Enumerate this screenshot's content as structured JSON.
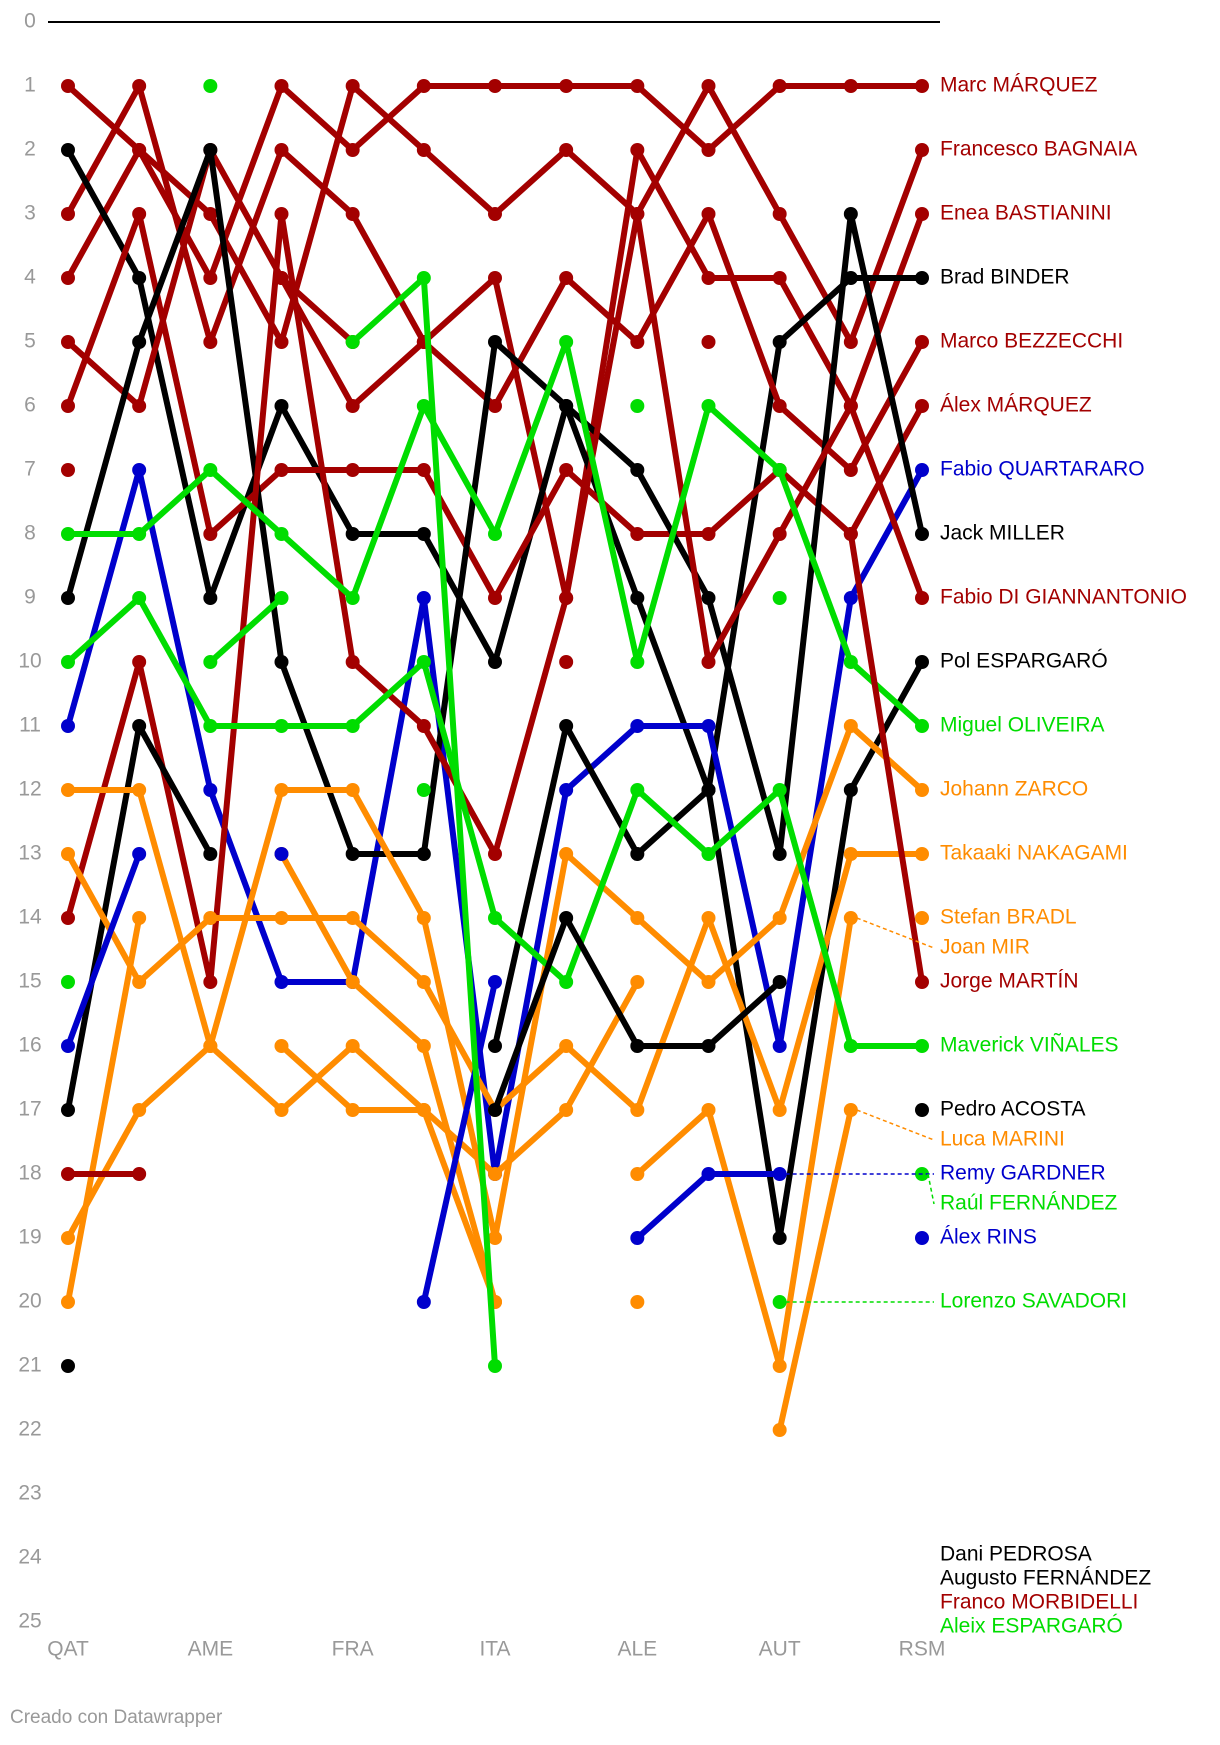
{
  "chart_data": {
    "type": "bump",
    "categories": [
      "QAT",
      null,
      "AME",
      null,
      "FRA",
      null,
      "ITA",
      null,
      "ALE",
      null,
      "AUT",
      null,
      "RSM"
    ],
    "ylim": [
      0,
      25
    ],
    "yticks": [
      0,
      1,
      2,
      3,
      4,
      5,
      6,
      7,
      8,
      9,
      10,
      11,
      12,
      13,
      14,
      15,
      16,
      17,
      18,
      19,
      20,
      21,
      22,
      23,
      24,
      25
    ],
    "credit": "Creado con Datawrapper",
    "series": [
      {
        "name": "Marc MÁRQUEZ",
        "color": "#a30000",
        "values": [
          4,
          2,
          4,
          1,
          2,
          1,
          1,
          1,
          1,
          2,
          1,
          1,
          1
        ]
      },
      {
        "name": "Francesco BAGNAIA",
        "color": "#a30000",
        "values": [
          1,
          2,
          3,
          5,
          1,
          2,
          3,
          2,
          3,
          1,
          3,
          5,
          2
        ]
      },
      {
        "name": "Enea BASTIANINI",
        "color": "#a30000",
        "values": [
          3,
          1,
          5,
          2,
          3,
          5,
          4,
          9,
          2,
          4,
          4,
          6,
          3
        ]
      },
      {
        "name": "Brad BINDER",
        "color": "#000000",
        "values": [
          2,
          4,
          9,
          6,
          8,
          8,
          10,
          6,
          9,
          12,
          5,
          4,
          4
        ]
      },
      {
        "name": "Marco BEZZECCHI",
        "color": "#a30000",
        "values": [
          5,
          6,
          2,
          4,
          6,
          5,
          6,
          4,
          5,
          3,
          6,
          7,
          5
        ]
      },
      {
        "name": "Álex MÁRQUEZ",
        "color": "#a30000",
        "values": [
          6,
          3,
          8,
          7,
          7,
          7,
          9,
          7,
          8,
          8,
          7,
          8,
          6
        ]
      },
      {
        "name": "Fabio QUARTARARO",
        "color": "#0000cc",
        "values": [
          11,
          7,
          12,
          15,
          15,
          9,
          18,
          12,
          11,
          11,
          16,
          9,
          7
        ]
      },
      {
        "name": "Jack MILLER",
        "color": "#000000",
        "values": [
          9,
          5,
          2,
          10,
          13,
          13,
          5,
          6,
          7,
          9,
          13,
          3,
          8
        ]
      },
      {
        "name": "Fabio DI GIANNANTONIO",
        "color": "#a30000",
        "values": [
          14,
          10,
          15,
          3,
          10,
          11,
          13,
          9,
          3,
          10,
          8,
          6,
          9
        ]
      },
      {
        "name": "Pol ESPARGARÓ",
        "color": "#000000",
        "values": [
          17,
          11,
          13,
          null,
          null,
          null,
          16,
          11,
          13,
          12,
          19,
          12,
          10
        ]
      },
      {
        "name": "Miguel OLIVEIRA",
        "color": "#00dd00",
        "values": [
          8,
          8,
          7,
          8,
          9,
          6,
          8,
          5,
          10,
          6,
          7,
          10,
          11
        ]
      },
      {
        "name": "Johann ZARCO",
        "color": "#ff8c00",
        "values": [
          12,
          12,
          16,
          12,
          12,
          14,
          19,
          13,
          14,
          15,
          14,
          11,
          12
        ]
      },
      {
        "name": "Takaaki NAKAGAMI",
        "color": "#ff8c00",
        "values": [
          13,
          15,
          14,
          14,
          14,
          15,
          17,
          16,
          17,
          14,
          17,
          13,
          13
        ]
      },
      {
        "name": "Stefan BRADL",
        "color": "#ff8c00",
        "values": [
          19,
          17,
          16,
          17,
          16,
          17,
          18,
          17,
          15,
          null,
          null,
          null,
          14
        ]
      },
      {
        "name": "Joan MIR",
        "color": "#ff8c00",
        "values": [
          20,
          14,
          null,
          13,
          15,
          16,
          20,
          null,
          18,
          17,
          21,
          14,
          null
        ]
      },
      {
        "name": "Jorge MARTÍN",
        "color": "#a30000",
        "values": [
          7,
          null,
          null,
          4,
          5,
          null,
          null,
          10,
          null,
          5,
          null,
          8,
          15
        ]
      },
      {
        "name": "Maverick VIÑALES",
        "color": "#00dd00",
        "values": [
          10,
          9,
          11,
          11,
          11,
          10,
          14,
          15,
          12,
          13,
          12,
          16,
          16
        ]
      },
      {
        "name": "Pedro ACOSTA",
        "color": "#000000",
        "values": [
          21,
          null,
          null,
          null,
          null,
          null,
          17,
          14,
          16,
          16,
          15,
          null,
          17
        ]
      },
      {
        "name": "Luca MARINI",
        "color": "#ff8c00",
        "values": [
          null,
          null,
          null,
          16,
          17,
          17,
          20,
          null,
          20,
          null,
          22,
          17,
          null
        ]
      },
      {
        "name": "Remy GARDNER",
        "color": "#0000cc",
        "values": [
          null,
          null,
          null,
          null,
          null,
          null,
          null,
          null,
          19,
          18,
          18,
          null,
          null
        ]
      },
      {
        "name": "Raúl FERNÁNDEZ",
        "color": "#00dd00",
        "values": [
          15,
          null,
          10,
          9,
          null,
          12,
          null,
          null,
          6,
          null,
          9,
          null,
          18
        ]
      },
      {
        "name": "Álex RINS",
        "color": "#0000cc",
        "values": [
          16,
          13,
          null,
          13,
          null,
          20,
          15,
          null,
          null,
          null,
          null,
          null,
          19
        ]
      },
      {
        "name": "Lorenzo SAVADORI",
        "color": "#00dd00",
        "values": [
          null,
          null,
          1,
          null,
          5,
          4,
          21,
          null,
          null,
          null,
          20,
          null,
          null
        ]
      },
      {
        "name": "Dani PEDROSA",
        "color": "#000000",
        "values": [
          null,
          null,
          null,
          null,
          null,
          null,
          null,
          null,
          null,
          null,
          null,
          null,
          null
        ]
      },
      {
        "name": "Augusto FERNÁNDEZ",
        "color": "#000000",
        "values": [
          null,
          null,
          null,
          null,
          null,
          null,
          null,
          null,
          null,
          null,
          null,
          null,
          null
        ]
      },
      {
        "name": "Franco MORBIDELLI",
        "color": "#a30000",
        "values": [
          18,
          18,
          null,
          null,
          null,
          null,
          null,
          null,
          null,
          null,
          null,
          null,
          null
        ]
      },
      {
        "name": "Aleix ESPARGARÓ",
        "color": "#00dd00",
        "values": [
          null,
          null,
          null,
          null,
          null,
          null,
          null,
          null,
          null,
          null,
          null,
          null,
          null
        ]
      }
    ]
  }
}
